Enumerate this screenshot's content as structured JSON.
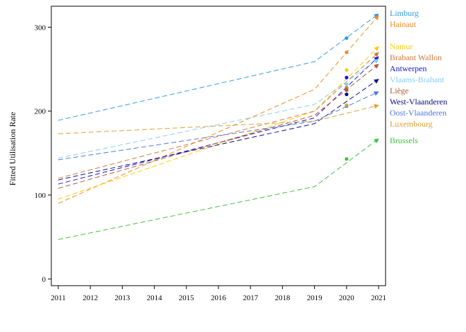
{
  "chart_data": {
    "type": "line",
    "title": "",
    "xlabel": "",
    "ylabel": "Fitted Utilisation Rate",
    "x": [
      2011,
      2012,
      2013,
      2014,
      2015,
      2016,
      2017,
      2018,
      2019,
      2020,
      2021
    ],
    "xlim": [
      2011,
      2021
    ],
    "ylim": [
      -8,
      325
    ],
    "yticks": [
      0,
      100,
      200,
      300
    ],
    "grid": false,
    "legend": "right",
    "series": [
      {
        "name": "Limburg",
        "color": "#3399e6",
        "points": [
          [
            2011,
            189
          ],
          [
            2019,
            259
          ],
          [
            2021,
            316
          ]
        ],
        "observed_2020": 287
      },
      {
        "name": "Hainaut",
        "color": "#f28c1c",
        "points": [
          [
            2011,
            90
          ],
          [
            2019,
            226
          ],
          [
            2021,
            314
          ]
        ],
        "observed_2020": 270
      },
      {
        "name": "Namur",
        "color": "#ffcc00",
        "points": [
          [
            2011,
            95
          ],
          [
            2019,
            200
          ],
          [
            2021,
            277
          ]
        ],
        "observed_2020": 249
      },
      {
        "name": "Brabant Wallon",
        "color": "#cd7a40",
        "points": [
          [
            2011,
            120
          ],
          [
            2019,
            200
          ],
          [
            2021,
            270
          ]
        ],
        "observed_2020": 228
      },
      {
        "name": "Antwerpen",
        "color": "#1414e0",
        "points": [
          [
            2011,
            113
          ],
          [
            2019,
            192
          ],
          [
            2021,
            265
          ]
        ],
        "observed_2020": 240
      },
      {
        "name": "Vlaams-Brabant",
        "color": "#87cef0",
        "points": [
          [
            2011,
            144
          ],
          [
            2019,
            208
          ],
          [
            2021,
            262
          ]
        ],
        "observed_2020": 232
      },
      {
        "name": "Liège",
        "color": "#b05a34",
        "points": [
          [
            2011,
            108
          ],
          [
            2019,
            195
          ],
          [
            2021,
            256
          ]
        ],
        "observed_2020": 225
      },
      {
        "name": "West-Vlaanderen",
        "color": "#0a0a80",
        "points": [
          [
            2011,
            118
          ],
          [
            2019,
            185
          ],
          [
            2021,
            238
          ]
        ],
        "observed_2020": 220
      },
      {
        "name": "Oost-Vlaanderen",
        "color": "#4a78dc",
        "points": [
          [
            2011,
            142
          ],
          [
            2019,
            188
          ],
          [
            2021,
            223
          ]
        ],
        "observed_2020": 206
      },
      {
        "name": "Luxembourg",
        "color": "#daa030",
        "points": [
          [
            2011,
            173
          ],
          [
            2019,
            188
          ],
          [
            2021,
            207
          ]
        ],
        "observed_2020": 207
      },
      {
        "name": "Brussels",
        "color": "#40c040",
        "points": [
          [
            2011,
            47
          ],
          [
            2019,
            110
          ],
          [
            2021,
            167
          ]
        ],
        "observed_2020": 143
      }
    ]
  }
}
